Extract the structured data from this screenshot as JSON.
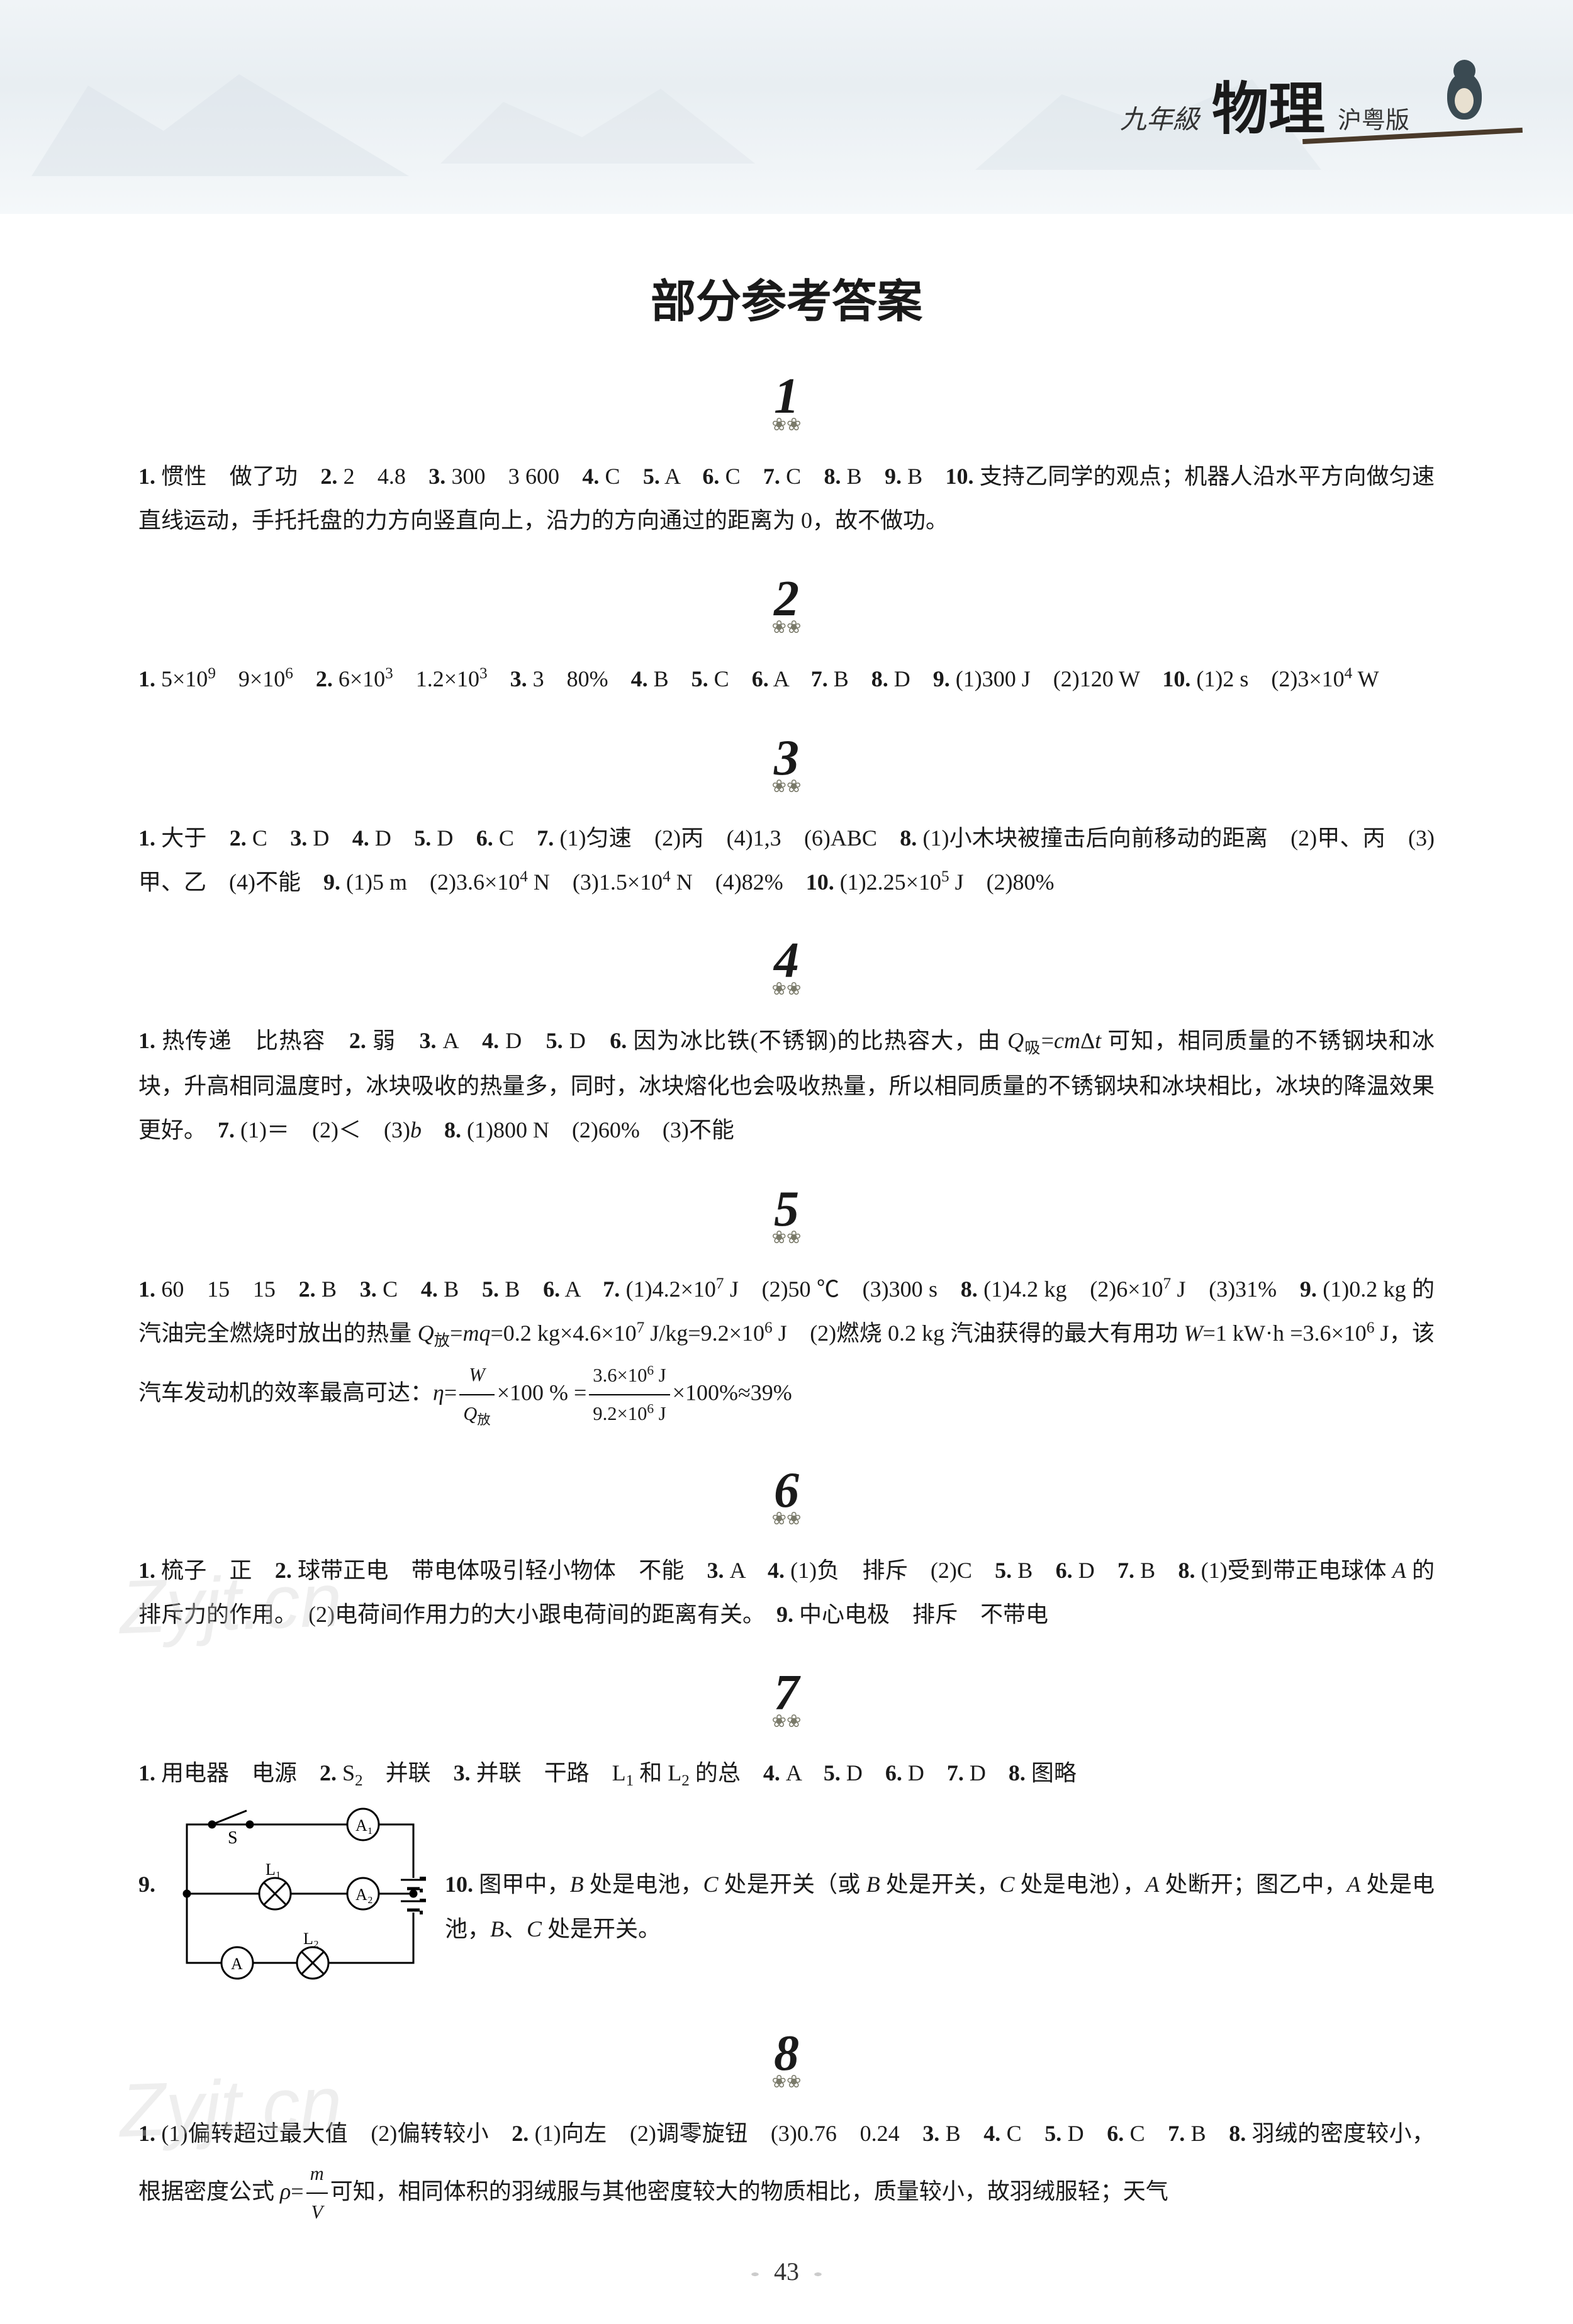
{
  "header": {
    "grade": "九年級",
    "subject": "物理",
    "edition": "沪粤版"
  },
  "main_title": "部分参考答案",
  "sections": [
    {
      "number": "1",
      "content_html": "<span class='bold'>1.</span> 惯性　做了功　<span class='bold'>2.</span> 2　4.8　<span class='bold'>3.</span> 300　3 600　<span class='bold'>4.</span> C　<span class='bold'>5.</span> A　<span class='bold'>6.</span> C　<span class='bold'>7.</span> C　<span class='bold'>8.</span> B　<span class='bold'>9.</span> B　<span class='bold'>10.</span> 支持乙同学的观点；机器人沿水平方向做匀速直线运动，手托托盘的力方向竖直向上，沿力的方向通过的距离为 0，故不做功。"
    },
    {
      "number": "2",
      "content_html": "<span class='bold'>1.</span> 5×10<span class='sup'>9</span>　9×10<span class='sup'>6</span>　<span class='bold'>2.</span> 6×10<span class='sup'>3</span>　1.2×10<span class='sup'>3</span>　<span class='bold'>3.</span> 3　80%　<span class='bold'>4.</span> B　<span class='bold'>5.</span> C　<span class='bold'>6.</span> A　<span class='bold'>7.</span> B　<span class='bold'>8.</span> D　<span class='bold'>9.</span> (1)300 J　(2)120 W　<span class='bold'>10.</span> (1)2 s　(2)3×10<span class='sup'>4</span> W"
    },
    {
      "number": "3",
      "content_html": "<span class='bold'>1.</span> 大于　<span class='bold'>2.</span> C　<span class='bold'>3.</span> D　<span class='bold'>4.</span> D　<span class='bold'>5.</span> D　<span class='bold'>6.</span> C　<span class='bold'>7.</span> (1)匀速　(2)丙　(4)1,3　(6)ABC　<span class='bold'>8.</span> (1)小木块被撞击后向前移动的距离　(2)甲、丙　(3)甲、乙　(4)不能　<span class='bold'>9.</span> (1)5 m　(2)3.6×10<span class='sup'>4</span> N　(3)1.5×10<span class='sup'>4</span> N　(4)82%　<span class='bold'>10.</span> (1)2.25×10<span class='sup'>5</span> J　(2)80%"
    },
    {
      "number": "4",
      "content_html": "<span class='bold'>1.</span> 热传递　比热容　<span class='bold'>2.</span> 弱　<span class='bold'>3.</span> A　<span class='bold'>4.</span> D　<span class='bold'>5.</span> D　<span class='bold'>6.</span> 因为冰比铁(不锈钢)的比热容大，由 <i>Q</i><span class='sub'>吸</span>=<i>cm</i>Δ<i>t</i> 可知，相同质量的不锈钢块和冰块，升高相同温度时，冰块吸收的热量多，同时，冰块熔化也会吸收热量，所以相同质量的不锈钢块和冰块相比，冰块的降温效果更好。　<span class='bold'>7.</span> (1)＝　(2)＜　(3)<i>b</i>　<span class='bold'>8.</span> (1)800 N　(2)60%　(3)不能"
    },
    {
      "number": "5",
      "content_html": "<span class='bold'>1.</span> 60　15　15　<span class='bold'>2.</span> B　<span class='bold'>3.</span> C　<span class='bold'>4.</span> B　<span class='bold'>5.</span> B　<span class='bold'>6.</span> A　<span class='bold'>7.</span> (1)4.2×10<span class='sup'>7</span> J　(2)50 ℃　(3)300 s　<span class='bold'>8.</span> (1)4.2 kg　(2)6×10<span class='sup'>7</span> J　(3)31%　<span class='bold'>9.</span> (1)0.2 kg 的汽油完全燃烧时放出的热量 <i>Q</i><span class='sub'>放</span>=<i>mq</i>=0.2 kg×4.6×10<span class='sup'>7</span> J/kg=9.2×10<span class='sup'>6</span> J　(2)燃烧 0.2 kg 汽油获得的最大有用功 <i>W</i>=1 kW·h =3.6×10<span class='sup'>6</span> J，该汽车发动机的效率最高可达：<i>η</i>=<span class='frac'><span class='num-top'><i>W</i></span><span class='num-bot'><i>Q</i><span class='sub'>放</span></span></span>×100 % =<span class='frac'><span class='num-top'>3.6×10<span class='sup'>6</span> J</span><span class='num-bot'>9.2×10<span class='sup'>6</span> J</span></span>×100%≈39%"
    },
    {
      "number": "6",
      "content_html": "<span class='bold'>1.</span> 梳子　正　<span class='bold'>2.</span> 球带正电　带电体吸引轻小物体　不能　<span class='bold'>3.</span> A　<span class='bold'>4.</span> (1)负　排斥　(2)C　<span class='bold'>5.</span> B　<span class='bold'>6.</span> D　<span class='bold'>7.</span> B　<span class='bold'>8.</span> (1)受到带正电球体 <i>A</i> 的排斥力的作用。　(2)电荷间作用力的大小跟电荷间的距离有关。　<span class='bold'>9.</span> 中心电极　排斥　不带电"
    },
    {
      "number": "7",
      "content_html": "<span class='bold'>1.</span> 用电器　电源　<span class='bold'>2.</span> S<span class='sub'>2</span>　并联　<span class='bold'>3.</span> 并联　干路　L<span class='sub'>1</span> 和 L<span class='sub'>2</span> 的总　<span class='bold'>4.</span> A　<span class='bold'>5.</span> D　<span class='bold'>6.</span> D　<span class='bold'>7.</span> D　<span class='bold'>8.</span> 图略",
      "has_circuit": true,
      "circuit_label": "9.",
      "post_circuit_html": "<span class='bold'>10.</span> 图甲中，<i>B</i> 处是电池，<i>C</i> 处是开关（或 <i>B</i> 处是开关，<i>C</i> 处是电池），<i>A</i> 处断开；图乙中，<i>A</i> 处是电池，<i>B</i>、<i>C</i> 处是开关。"
    },
    {
      "number": "8",
      "content_html": "<span class='bold'>1.</span> (1)偏转超过最大值　(2)偏转较小　<span class='bold'>2.</span> (1)向左　(2)调零旋钮　(3)0.76　0.24　<span class='bold'>3.</span> B　<span class='bold'>4.</span> C　<span class='bold'>5.</span> D　<span class='bold'>6.</span> C　<span class='bold'>7.</span> B　<span class='bold'>8.</span> 羽绒的密度较小，根据密度公式 <i>ρ</i>=<span class='frac'><span class='num-top'><i>m</i></span><span class='num-bot'><i>V</i></span></span>可知，相同体积的羽绒服与其他密度较大的物质相比，质量较小，故羽绒服轻；天气"
    }
  ],
  "circuit": {
    "L1": "L₁",
    "L2": "L₂",
    "A1": "A₁",
    "A2": "A₂",
    "A": "A",
    "S": "S"
  },
  "watermarks": {
    "text1": "Zyjt.cn",
    "text2": "Zyjt.cn"
  },
  "page_number": "43",
  "colors": {
    "text": "#1a1a1a",
    "background": "#ffffff",
    "banner_grad_top": "#f0f4f7",
    "watermark": "#d0d0d0"
  }
}
